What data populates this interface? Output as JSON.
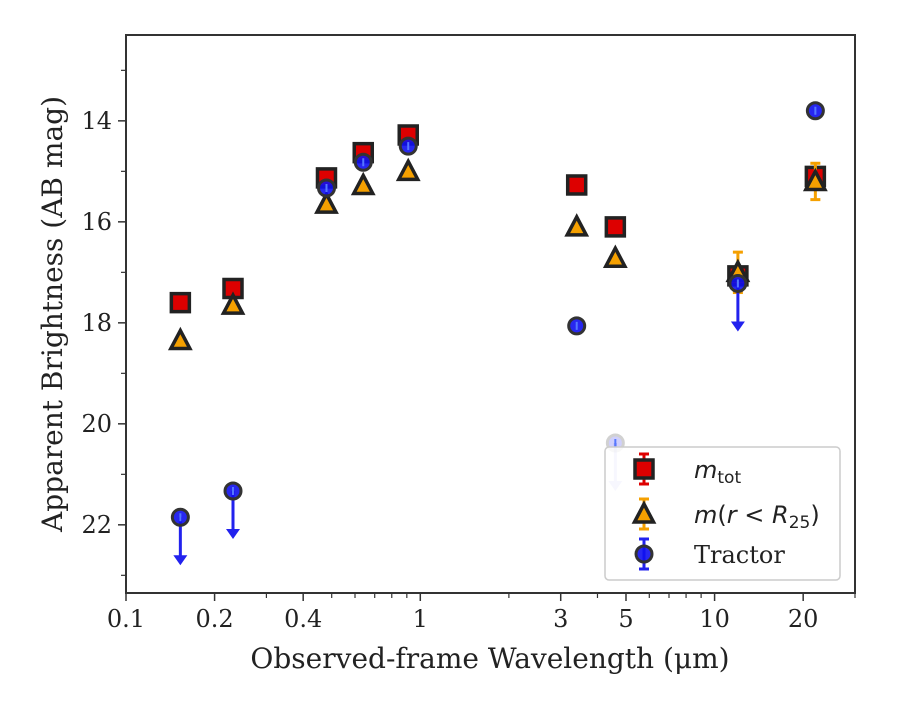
{
  "chart_data": {
    "type": "scatter",
    "title": "",
    "xlabel": "Observed-frame Wavelength (μm)",
    "ylabel": "Apparent Brightness (AB mag)",
    "xscale": "log",
    "xlim": [
      0.1,
      30
    ],
    "ylim": [
      23.35,
      12.3
    ],
    "y_inverted": true,
    "x_ticks": [
      {
        "value": 0.1,
        "label": "0.1"
      },
      {
        "value": 0.2,
        "label": "0.2"
      },
      {
        "value": 0.4,
        "label": "0.4"
      },
      {
        "value": 1,
        "label": "1"
      },
      {
        "value": 3,
        "label": "3"
      },
      {
        "value": 5,
        "label": "5"
      },
      {
        "value": 10,
        "label": "10"
      },
      {
        "value": 20,
        "label": "20"
      }
    ],
    "y_ticks": [
      {
        "value": 14,
        "label": "14"
      },
      {
        "value": 16,
        "label": "16"
      },
      {
        "value": 18,
        "label": "18"
      },
      {
        "value": 20,
        "label": "20"
      },
      {
        "value": 22,
        "label": "22"
      }
    ],
    "grid": false,
    "legend_position": "bottom-right",
    "series": [
      {
        "name": "m_tot",
        "legend_label": "mtot",
        "marker": "square",
        "color": "#dd0000",
        "edge_color": "#222222",
        "error_color": "#dd0000",
        "points": [
          {
            "x": 0.153,
            "y": 17.6
          },
          {
            "x": 0.231,
            "y": 17.32
          },
          {
            "x": 0.48,
            "y": 15.13
          },
          {
            "x": 0.64,
            "y": 14.63
          },
          {
            "x": 0.91,
            "y": 14.28
          },
          {
            "x": 3.4,
            "y": 15.27
          },
          {
            "x": 4.6,
            "y": 16.1
          },
          {
            "x": 12.0,
            "y": 17.07
          },
          {
            "x": 22.0,
            "y": 15.1
          }
        ]
      },
      {
        "name": "m(r < R25)",
        "legend_label": "m(r < R25)",
        "marker": "triangle",
        "color": "#f5a000",
        "edge_color": "#222222",
        "error_color": "#f5a000",
        "points": [
          {
            "x": 0.153,
            "y": 18.35
          },
          {
            "x": 0.231,
            "y": 17.65
          },
          {
            "x": 0.48,
            "y": 15.65
          },
          {
            "x": 0.64,
            "y": 15.28
          },
          {
            "x": 0.91,
            "y": 15.0
          },
          {
            "x": 3.4,
            "y": 16.1
          },
          {
            "x": 4.6,
            "y": 16.72
          },
          {
            "x": 12.0,
            "y": 17.0,
            "yerr": 0.4
          },
          {
            "x": 22.0,
            "y": 15.2,
            "yerr": 0.36
          }
        ]
      },
      {
        "name": "Tractor",
        "legend_label": "Tractor",
        "marker": "circle",
        "color": "#1010ee",
        "edge_color": "#333333",
        "error_color": "#2222ee",
        "points": [
          {
            "x": 0.153,
            "y": 21.85,
            "upper_limit": true
          },
          {
            "x": 0.231,
            "y": 21.33,
            "upper_limit": true
          },
          {
            "x": 0.48,
            "y": 15.33
          },
          {
            "x": 0.64,
            "y": 14.82
          },
          {
            "x": 0.91,
            "y": 14.5
          },
          {
            "x": 3.4,
            "y": 18.06
          },
          {
            "x": 4.6,
            "y": 20.38,
            "upper_limit": true,
            "faded": true
          },
          {
            "x": 12.0,
            "y": 17.22,
            "upper_limit": true
          },
          {
            "x": 22.0,
            "y": 13.8
          }
        ]
      }
    ]
  }
}
